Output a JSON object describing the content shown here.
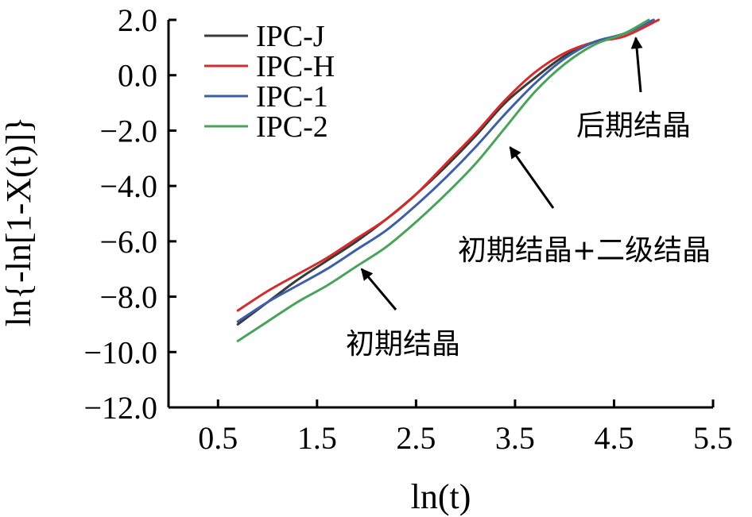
{
  "chart_data": {
    "type": "line",
    "title": "",
    "xlabel": "ln(t)",
    "ylabel": "ln{-ln[1-X(t)]}",
    "xlim": [
      0,
      5.5
    ],
    "ylim": [
      -12.0,
      2.0
    ],
    "x_ticks": [
      0.5,
      1.5,
      2.5,
      3.5,
      4.5,
      5.5
    ],
    "x_tick_labels": [
      "0.5",
      "1.5",
      "2.5",
      "3.5",
      "4.5",
      "5.5"
    ],
    "y_ticks": [
      2.0,
      0.0,
      -2.0,
      -4.0,
      -6.0,
      -8.0,
      -10.0,
      -12.0
    ],
    "y_tick_labels": [
      "2.0",
      "0.0",
      "−2.0",
      "−4.0",
      "−6.0",
      "−8.0",
      "−10.0",
      "−12.0"
    ],
    "grid": false,
    "legend_position": "top-left",
    "series": [
      {
        "name": "IPC-J",
        "color": "#3a3a3a",
        "x": [
          0.7,
          1.0,
          1.3,
          1.6,
          1.9,
          2.2,
          2.5,
          2.8,
          3.1,
          3.4,
          3.7,
          4.0,
          4.3,
          4.6,
          4.9
        ],
        "y": [
          -9.0,
          -8.2,
          -7.4,
          -6.7,
          -6.0,
          -5.2,
          -4.3,
          -3.3,
          -2.2,
          -1.0,
          -0.1,
          0.7,
          1.2,
          1.5,
          2.0
        ]
      },
      {
        "name": "IPC-H",
        "color": "#d62b2b",
        "x": [
          0.7,
          1.0,
          1.3,
          1.6,
          1.9,
          2.2,
          2.5,
          2.8,
          3.1,
          3.4,
          3.7,
          4.0,
          4.3,
          4.6,
          4.95
        ],
        "y": [
          -8.5,
          -7.8,
          -7.2,
          -6.6,
          -5.9,
          -5.2,
          -4.3,
          -3.2,
          -2.1,
          -0.9,
          0.1,
          0.8,
          1.2,
          1.4,
          2.0
        ]
      },
      {
        "name": "IPC-1",
        "color": "#3d5fa8",
        "x": [
          0.7,
          1.0,
          1.3,
          1.6,
          1.9,
          2.2,
          2.5,
          2.8,
          3.1,
          3.4,
          3.7,
          4.0,
          4.3,
          4.6,
          4.9
        ],
        "y": [
          -8.9,
          -8.2,
          -7.6,
          -7.0,
          -6.3,
          -5.6,
          -4.7,
          -3.7,
          -2.6,
          -1.4,
          -0.3,
          0.6,
          1.2,
          1.5,
          2.0
        ]
      },
      {
        "name": "IPC-2",
        "color": "#4aa35a",
        "x": [
          0.7,
          1.0,
          1.3,
          1.6,
          1.9,
          2.2,
          2.5,
          2.8,
          3.1,
          3.4,
          3.7,
          4.0,
          4.3,
          4.6,
          4.85
        ],
        "y": [
          -9.6,
          -8.9,
          -8.2,
          -7.6,
          -6.9,
          -6.2,
          -5.3,
          -4.3,
          -3.2,
          -1.9,
          -0.6,
          0.4,
          1.1,
          1.5,
          2.0
        ]
      }
    ],
    "annotations": [
      {
        "text": "后期结晶",
        "x": 4.85,
        "y": -1.8,
        "arrow_to_x": 4.72,
        "arrow_to_y": 1.35
      },
      {
        "text": "初期结晶+二级结晶",
        "x": 4.35,
        "y": -6.3,
        "arrow_to_x": 3.45,
        "arrow_to_y": -2.6
      },
      {
        "text": "初期结晶",
        "x": 2.8,
        "y": -9.6,
        "arrow_to_x": 1.95,
        "arrow_to_y": -7.0
      }
    ]
  }
}
